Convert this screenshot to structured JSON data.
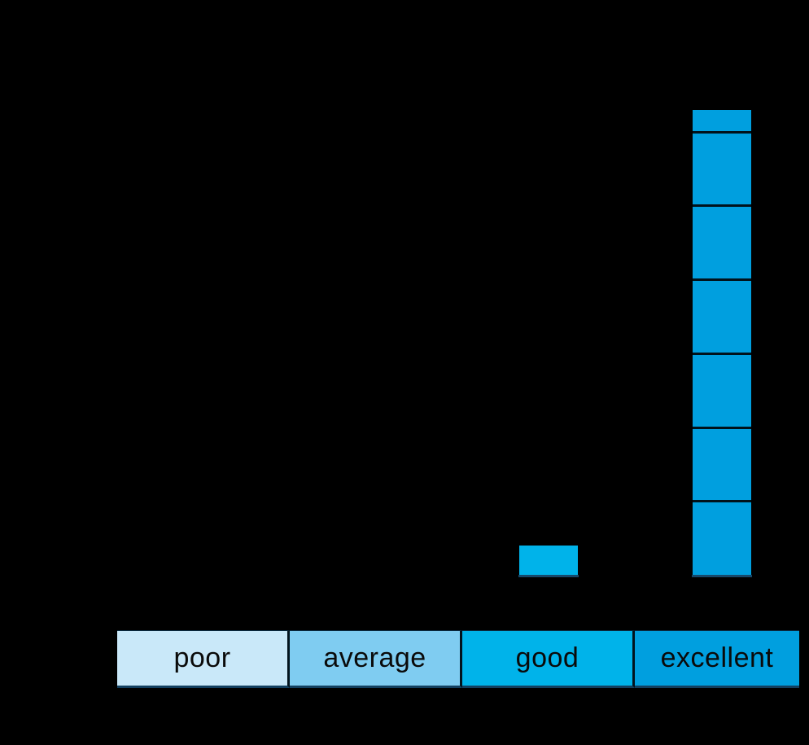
{
  "canvas": {
    "background_color": "#000000"
  },
  "chart_data": {
    "type": "bar",
    "title": "",
    "xlabel": "",
    "ylabel": "",
    "categories": [
      "poor",
      "average",
      "good",
      "excellent"
    ],
    "values": [
      0,
      0,
      0.4,
      6.3
    ],
    "values_unit_note": "values estimated in gridline divisions; axis tick labels not visible in image",
    "gridlines": "horizontal unit dividers visible as dark lines crossing the bars",
    "bar_colors": [
      "#c9e8f9",
      "#7fccf1",
      "#00b3ea",
      "#009fdf"
    ],
    "divider_color": "#01121b",
    "baseline_underline_color": "#17486a",
    "legend_position": "bottom category strip"
  },
  "category_strip": {
    "cells": [
      {
        "label": "poor",
        "color": "#c9e8f9"
      },
      {
        "label": "average",
        "color": "#7fccf1"
      },
      {
        "label": "good",
        "color": "#00b3ea"
      },
      {
        "label": "excellent",
        "color": "#009fdf"
      }
    ],
    "label_color": "#0a0a0a"
  }
}
